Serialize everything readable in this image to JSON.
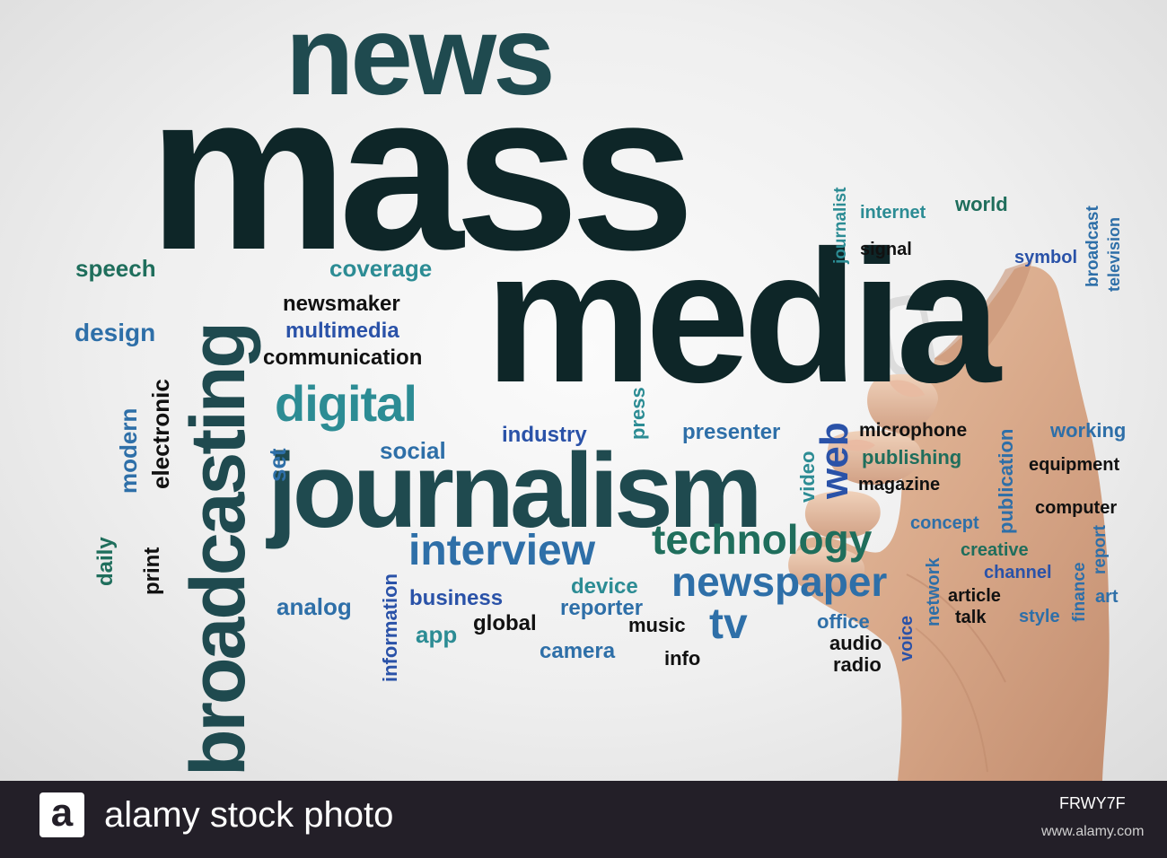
{
  "colors": {
    "dark": "#0e2628",
    "darkteal": "#1f4a4f",
    "teal": "#2c8c94",
    "blue": "#2e6fa8",
    "royal": "#2a52a8",
    "navy": "#1c2d5a",
    "green": "#1f6e5c",
    "black": "#111111",
    "footer": "#231f28"
  },
  "words": {
    "news": "news",
    "mass": "mass",
    "media": "media",
    "broadcasting": "broadcasting",
    "journalism": "journalism",
    "digital": "digital",
    "interview": "interview",
    "technology": "technology",
    "newspaper": "newspaper",
    "tv": "tv",
    "web": "web",
    "speech": "speech",
    "coverage": "coverage",
    "newsmaker": "newsmaker",
    "multimedia": "multimedia",
    "communication": "communication",
    "design": "design",
    "modern": "modern",
    "electronic": "electronic",
    "set": "set",
    "social": "social",
    "industry": "industry",
    "press": "press",
    "presenter": "presenter",
    "video": "video",
    "microphone": "microphone",
    "publishing": "publishing",
    "magazine": "magazine",
    "working": "working",
    "equipment": "equipment",
    "publication": "publication",
    "computer": "computer",
    "journalist": "journalist",
    "internet": "internet",
    "world": "world",
    "signal": "signal",
    "symbol": "symbol",
    "broadcast": "broadcast",
    "television": "television",
    "daily": "daily",
    "print": "print",
    "analog": "analog",
    "information": "information",
    "business": "business",
    "app": "app",
    "global": "global",
    "device": "device",
    "reporter": "reporter",
    "music": "music",
    "camera": "camera",
    "info": "info",
    "office": "office",
    "audio": "audio",
    "radio": "radio",
    "voice": "voice",
    "network": "network",
    "concept": "concept",
    "creative": "creative",
    "channel": "channel",
    "article": "article",
    "talk": "talk",
    "style": "style",
    "finance": "finance",
    "report": "report",
    "art": "art"
  },
  "watermark": {
    "logo_letter": "a",
    "brand": "alamy stock photo",
    "image_id": "FRWY7F",
    "site": "www.alamy.com"
  }
}
